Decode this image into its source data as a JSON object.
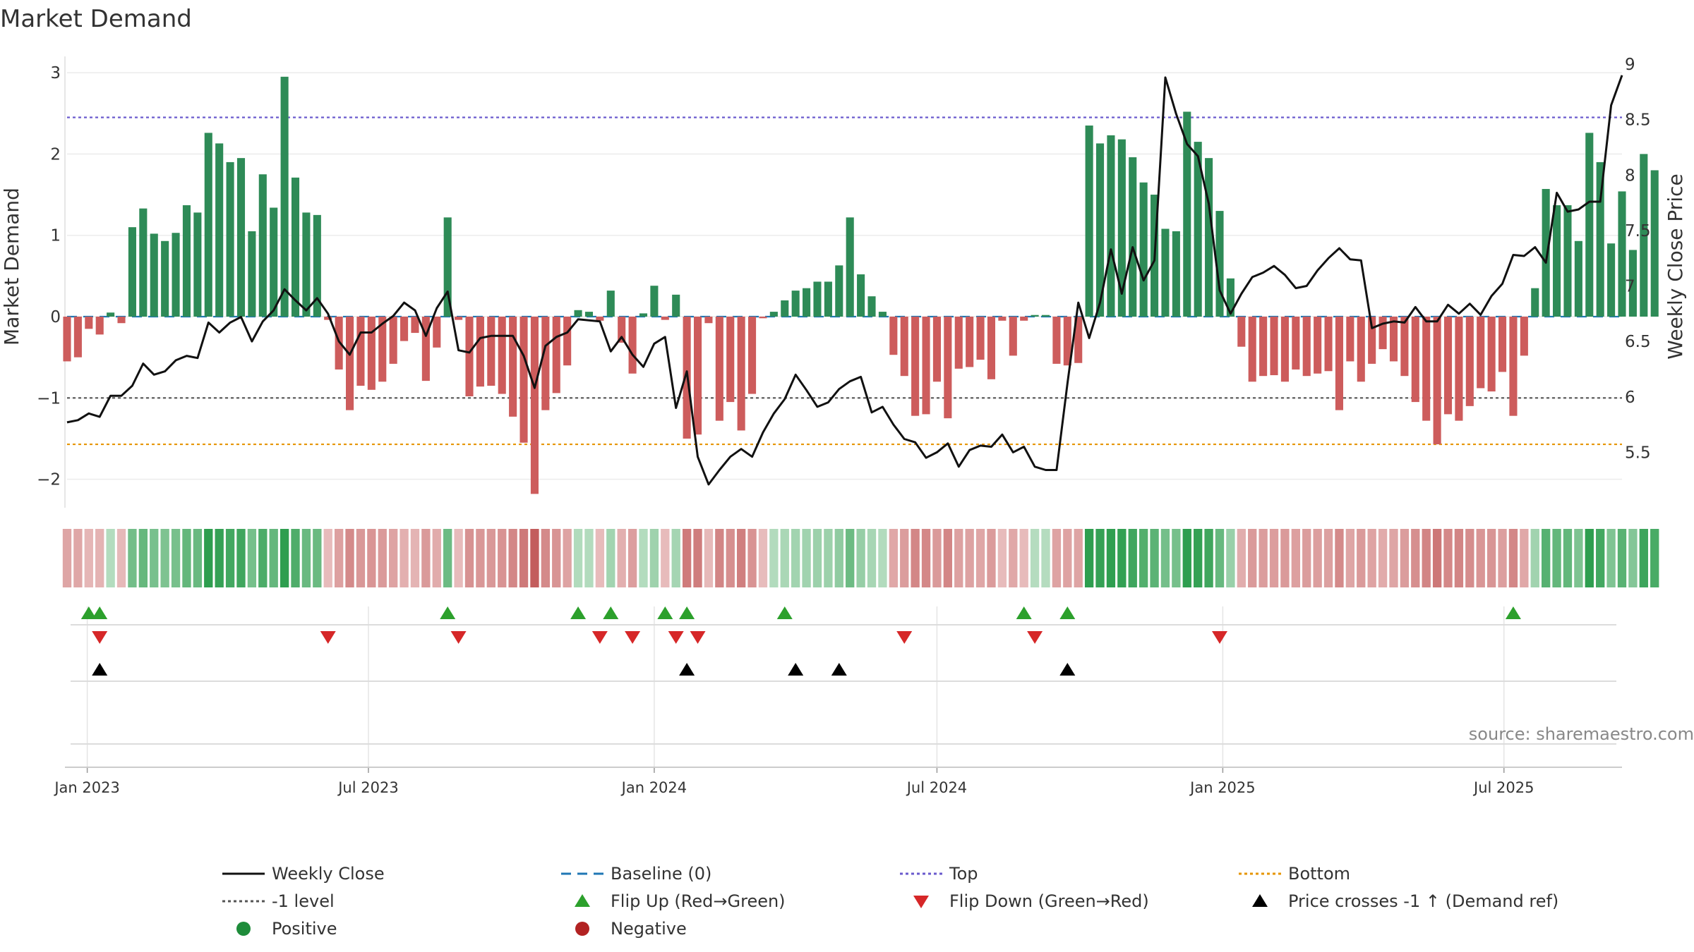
{
  "chart_data": {
    "type": "bar",
    "title": "Market Demand",
    "ylabel": "Market Demand",
    "y2label": "Weekly Close Price",
    "ylim": [
      -2.35,
      3.2
    ],
    "y2lim": [
      5.0,
      9.07
    ],
    "y_ticks": [
      3,
      2,
      1,
      0,
      -1,
      -2
    ],
    "y_tick_labels": [
      "3",
      "2",
      "1",
      "0",
      "−1",
      "−2"
    ],
    "y2_ticks": [
      9,
      8.5,
      8,
      7.5,
      7,
      6.5,
      6,
      5.5
    ],
    "y2_tick_labels": [
      "9",
      "8.5",
      "8",
      "7.5",
      "7",
      "6.5",
      "6",
      "5.5"
    ],
    "x_start": "2022-12-19",
    "x_end": "2025-09-15",
    "x_ticks": [
      "2023-01-01",
      "2023-07-01",
      "2024-01-01",
      "2024-07-01",
      "2025-01-01",
      "2025-07-01"
    ],
    "x_tick_labels": [
      "Jan 2023",
      "Jul 2023",
      "Jan 2024",
      "Jul 2024",
      "Jan 2025",
      "Jul 2025"
    ],
    "grid": true,
    "source": "source: sharemaestro.com",
    "levels": {
      "top": 2.45,
      "baseline": 0,
      "minus_one": -1,
      "bottom": -1.57
    },
    "demand": [
      -0.55,
      -0.5,
      -0.15,
      -0.22,
      0.05,
      -0.08,
      1.1,
      1.33,
      1.02,
      0.93,
      1.03,
      1.37,
      1.28,
      2.26,
      2.13,
      1.9,
      1.95,
      1.05,
      1.75,
      1.34,
      2.95,
      1.71,
      1.28,
      1.25,
      -0.04,
      -0.65,
      -1.15,
      -0.85,
      -0.9,
      -0.8,
      -0.58,
      -0.3,
      -0.2,
      -0.79,
      -0.38,
      1.22,
      -0.04,
      -0.98,
      -0.86,
      -0.85,
      -0.95,
      -1.23,
      -1.55,
      -2.18,
      -1.15,
      -0.94,
      -0.6,
      0.08,
      0.06,
      -0.05,
      0.32,
      -0.32,
      -0.7,
      0.04,
      0.38,
      -0.04,
      0.27,
      -1.5,
      -1.45,
      -0.08,
      -1.28,
      -1.05,
      -1.4,
      -0.95,
      -0.02,
      0.06,
      0.2,
      0.32,
      0.35,
      0.43,
      0.43,
      0.63,
      1.22,
      0.52,
      0.25,
      0.06,
      -0.47,
      -0.73,
      -1.22,
      -1.2,
      -0.8,
      -1.25,
      -0.64,
      -0.62,
      -0.53,
      -0.77,
      -0.05,
      -0.48,
      -0.05,
      0.02,
      0.02,
      -0.58,
      -0.6,
      -0.57,
      2.35,
      2.13,
      2.23,
      2.18,
      1.96,
      1.65,
      1.5,
      1.08,
      1.05,
      2.52,
      2.15,
      1.95,
      1.3,
      0.47,
      -0.37,
      -0.8,
      -0.73,
      -0.72,
      -0.8,
      -0.65,
      -0.73,
      -0.7,
      -0.67,
      -1.15,
      -0.55,
      -0.8,
      -0.58,
      -0.4,
      -0.55,
      -0.73,
      -1.05,
      -1.28,
      -1.57,
      -1.2,
      -1.28,
      -1.1,
      -0.88,
      -0.92,
      -0.68,
      -1.22,
      -0.48,
      0.35,
      1.57,
      1.37,
      1.37,
      0.93,
      2.26,
      1.9,
      0.9,
      1.54,
      0.82,
      2.0,
      1.8
    ],
    "close": [
      5.77,
      5.79,
      5.85,
      5.82,
      6.01,
      6.01,
      6.1,
      6.3,
      6.2,
      6.23,
      6.33,
      6.37,
      6.35,
      6.67,
      6.58,
      6.67,
      6.72,
      6.5,
      6.68,
      6.78,
      6.97,
      6.87,
      6.78,
      6.89,
      6.75,
      6.5,
      6.38,
      6.58,
      6.58,
      6.66,
      6.73,
      6.85,
      6.78,
      6.55,
      6.8,
      6.95,
      6.42,
      6.4,
      6.53,
      6.55,
      6.55,
      6.55,
      6.37,
      6.08,
      6.46,
      6.54,
      6.58,
      6.7,
      6.69,
      6.68,
      6.41,
      6.54,
      6.38,
      6.27,
      6.48,
      6.54,
      5.9,
      6.23,
      5.46,
      5.21,
      5.34,
      5.46,
      5.53,
      5.46,
      5.68,
      5.85,
      5.98,
      6.2,
      6.06,
      5.91,
      5.95,
      6.07,
      6.14,
      6.18,
      5.86,
      5.91,
      5.75,
      5.62,
      5.59,
      5.45,
      5.5,
      5.58,
      5.37,
      5.52,
      5.56,
      5.55,
      5.66,
      5.5,
      5.55,
      5.37,
      5.34,
      5.34,
      6.12,
      6.85,
      6.53,
      6.85,
      7.33,
      6.93,
      7.35,
      7.05,
      7.23,
      8.88,
      8.55,
      8.28,
      8.17,
      7.74,
      6.96,
      6.75,
      6.93,
      7.08,
      7.12,
      7.18,
      7.1,
      6.98,
      7.0,
      7.14,
      7.25,
      7.34,
      7.24,
      7.23,
      6.62,
      6.66,
      6.68,
      6.67,
      6.81,
      6.68,
      6.68,
      6.83,
      6.75,
      6.84,
      6.74,
      6.91,
      7.02,
      7.28,
      7.27,
      7.35,
      7.21,
      7.84,
      7.67,
      7.69,
      7.76,
      7.76,
      8.63,
      8.9
    ],
    "flip_up_weeks": [
      2,
      3,
      35,
      47,
      50,
      55,
      57,
      66,
      88,
      92,
      133
    ],
    "flip_down_weeks": [
      3,
      24,
      36,
      49,
      52,
      56,
      58,
      77,
      89,
      106
    ],
    "price_cross_weeks": [
      3,
      57,
      67,
      71,
      92
    ],
    "colors": {
      "positive": "#2e8b57",
      "negative": "#cd5c5c",
      "close_line": "#111111",
      "baseline": "#1f77b4",
      "top": "#6a5acd",
      "minus_one": "#555555",
      "bottom": "#e69500",
      "flip_up": "#2ca02c",
      "flip_down": "#d62728",
      "price_cross": "#000000",
      "dot_positive": "#1e8c3a",
      "dot_negative": "#b22222"
    },
    "legend": [
      {
        "label": "Weekly Close",
        "symbol": "line-solid",
        "color": "#111111"
      },
      {
        "label": "Baseline (0)",
        "symbol": "line-dashed",
        "color": "#1f77b4"
      },
      {
        "label": "Top",
        "symbol": "line-dotted",
        "color": "#6a5acd"
      },
      {
        "label": "Bottom",
        "symbol": "line-dotted",
        "color": "#e69500"
      },
      {
        "label": "-1 level",
        "symbol": "line-dotted",
        "color": "#555555"
      },
      {
        "label": "Flip Up (Red→Green)",
        "symbol": "triangle-up",
        "color": "#2ca02c"
      },
      {
        "label": "Flip Down (Green→Red)",
        "symbol": "triangle-down",
        "color": "#d62728"
      },
      {
        "label": "Price crosses -1 ↑ (Demand ref)",
        "symbol": "triangle-up",
        "color": "#000000"
      },
      {
        "label": "Positive",
        "symbol": "dot",
        "color": "#1e8c3a"
      },
      {
        "label": "Negative",
        "symbol": "dot",
        "color": "#b22222"
      }
    ]
  }
}
